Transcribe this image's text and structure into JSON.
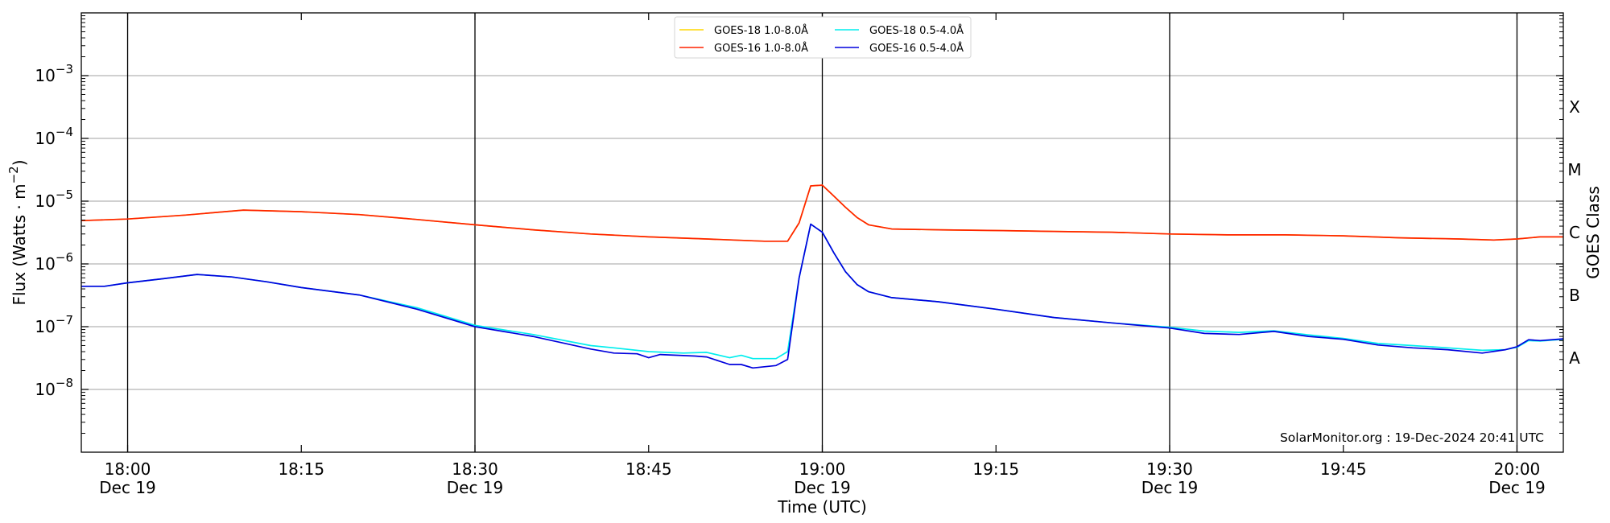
{
  "chart_data": {
    "type": "line",
    "xlabel": "Time (UTC)",
    "ylabel": "Flux (Watts · m⁻²)",
    "ylabel_right": "GOES Class",
    "x_unit": "UTC time (HH:MM), 19-Dec-2024",
    "xlim": [
      "17:56",
      "20:04"
    ],
    "ylim": [
      1e-09,
      0.01
    ],
    "y_scale": "log",
    "grid": "horizontal at each decade; vertical at 30-minute ticks",
    "legend_position": "top-center",
    "x_ticks": [
      {
        "x": "18:00",
        "time": "18:00",
        "date": "Dec 19"
      },
      {
        "x": "18:15",
        "time": "18:15",
        "date": ""
      },
      {
        "x": "18:30",
        "time": "18:30",
        "date": "Dec 19"
      },
      {
        "x": "18:45",
        "time": "18:45",
        "date": ""
      },
      {
        "x": "19:00",
        "time": "19:00",
        "date": "Dec 19"
      },
      {
        "x": "19:15",
        "time": "19:15",
        "date": ""
      },
      {
        "x": "19:30",
        "time": "19:30",
        "date": "Dec 19"
      },
      {
        "x": "19:45",
        "time": "19:45",
        "date": ""
      },
      {
        "x": "20:00",
        "time": "20:00",
        "date": "Dec 19"
      }
    ],
    "y_ticks": [
      {
        "value": 0.001,
        "base": "10",
        "exp": "−3"
      },
      {
        "value": 0.0001,
        "base": "10",
        "exp": "−4"
      },
      {
        "value": 1e-05,
        "base": "10",
        "exp": "−5"
      },
      {
        "value": 1e-06,
        "base": "10",
        "exp": "−6"
      },
      {
        "value": 1e-07,
        "base": "10",
        "exp": "−7"
      },
      {
        "value": 1e-08,
        "base": "10",
        "exp": "−8"
      }
    ],
    "class_labels": [
      {
        "label": "X",
        "value": 0.000316
      },
      {
        "label": "M",
        "value": 3.16e-05
      },
      {
        "label": "C",
        "value": 3.16e-06
      },
      {
        "label": "B",
        "value": 3.16e-07
      },
      {
        "label": "A",
        "value": 3.16e-08
      }
    ],
    "series": [
      {
        "name": "GOES-18 1.0-8.0Å",
        "color": "#ffd700",
        "points": [
          [
            "17:56",
            4.9e-06
          ],
          [
            "18:00",
            5.2e-06
          ],
          [
            "18:05",
            6e-06
          ],
          [
            "18:10",
            7.2e-06
          ],
          [
            "18:15",
            6.8e-06
          ],
          [
            "18:20",
            6.1e-06
          ],
          [
            "18:25",
            5.1e-06
          ],
          [
            "18:30",
            4.2e-06
          ],
          [
            "18:35",
            3.5e-06
          ],
          [
            "18:40",
            3e-06
          ],
          [
            "18:45",
            2.7e-06
          ],
          [
            "18:50",
            2.5e-06
          ],
          [
            "18:55",
            2.3e-06
          ],
          [
            "18:57",
            2.3e-06
          ],
          [
            "18:58",
            4.5e-06
          ],
          [
            "18:59",
            1.75e-05
          ],
          [
            "19:00",
            1.8e-05
          ],
          [
            "19:01",
            1.2e-05
          ],
          [
            "19:02",
            8e-06
          ],
          [
            "19:03",
            5.5e-06
          ],
          [
            "19:04",
            4.2e-06
          ],
          [
            "19:06",
            3.6e-06
          ],
          [
            "19:10",
            3.5e-06
          ],
          [
            "19:15",
            3.4e-06
          ],
          [
            "19:20",
            3.3e-06
          ],
          [
            "19:25",
            3.2e-06
          ],
          [
            "19:30",
            3e-06
          ],
          [
            "19:35",
            2.9e-06
          ],
          [
            "19:40",
            2.9e-06
          ],
          [
            "19:45",
            2.8e-06
          ],
          [
            "19:50",
            2.6e-06
          ],
          [
            "19:55",
            2.5e-06
          ],
          [
            "19:58",
            2.4e-06
          ],
          [
            "20:00",
            2.5e-06
          ],
          [
            "20:02",
            2.7e-06
          ],
          [
            "20:04",
            2.7e-06
          ]
        ]
      },
      {
        "name": "GOES-16 1.0-8.0Å",
        "color": "#ff2200",
        "points": [
          [
            "17:56",
            4.9e-06
          ],
          [
            "18:00",
            5.2e-06
          ],
          [
            "18:05",
            6e-06
          ],
          [
            "18:10",
            7.2e-06
          ],
          [
            "18:15",
            6.8e-06
          ],
          [
            "18:20",
            6.1e-06
          ],
          [
            "18:25",
            5.1e-06
          ],
          [
            "18:30",
            4.2e-06
          ],
          [
            "18:35",
            3.5e-06
          ],
          [
            "18:40",
            3e-06
          ],
          [
            "18:45",
            2.7e-06
          ],
          [
            "18:50",
            2.5e-06
          ],
          [
            "18:55",
            2.3e-06
          ],
          [
            "18:57",
            2.3e-06
          ],
          [
            "18:58",
            4.5e-06
          ],
          [
            "18:59",
            1.75e-05
          ],
          [
            "19:00",
            1.8e-05
          ],
          [
            "19:01",
            1.2e-05
          ],
          [
            "19:02",
            8e-06
          ],
          [
            "19:03",
            5.5e-06
          ],
          [
            "19:04",
            4.2e-06
          ],
          [
            "19:06",
            3.6e-06
          ],
          [
            "19:10",
            3.5e-06
          ],
          [
            "19:15",
            3.4e-06
          ],
          [
            "19:20",
            3.3e-06
          ],
          [
            "19:25",
            3.2e-06
          ],
          [
            "19:30",
            3e-06
          ],
          [
            "19:35",
            2.9e-06
          ],
          [
            "19:40",
            2.9e-06
          ],
          [
            "19:45",
            2.8e-06
          ],
          [
            "19:50",
            2.6e-06
          ],
          [
            "19:55",
            2.5e-06
          ],
          [
            "19:58",
            2.4e-06
          ],
          [
            "20:00",
            2.5e-06
          ],
          [
            "20:02",
            2.7e-06
          ],
          [
            "20:04",
            2.7e-06
          ]
        ]
      },
      {
        "name": "GOES-18 0.5-4.0Å",
        "color": "#00eeee",
        "points": [
          [
            "17:56",
            4.4e-07
          ],
          [
            "17:58",
            4.4e-07
          ],
          [
            "18:00",
            5e-07
          ],
          [
            "18:03",
            5.8e-07
          ],
          [
            "18:06",
            6.8e-07
          ],
          [
            "18:09",
            6.2e-07
          ],
          [
            "18:12",
            5.2e-07
          ],
          [
            "18:15",
            4.2e-07
          ],
          [
            "18:20",
            3.2e-07
          ],
          [
            "18:25",
            2e-07
          ],
          [
            "18:30",
            1.05e-07
          ],
          [
            "18:35",
            7.5e-08
          ],
          [
            "18:40",
            5e-08
          ],
          [
            "18:42",
            4.6e-08
          ],
          [
            "18:45",
            4e-08
          ],
          [
            "18:48",
            3.8e-08
          ],
          [
            "18:50",
            3.9e-08
          ],
          [
            "18:52",
            3.2e-08
          ],
          [
            "18:53",
            3.5e-08
          ],
          [
            "18:54",
            3.1e-08
          ],
          [
            "18:56",
            3.1e-08
          ],
          [
            "18:57",
            4e-08
          ],
          [
            "18:58",
            6e-07
          ],
          [
            "18:59",
            4.3e-06
          ],
          [
            "19:00",
            3.2e-06
          ],
          [
            "19:01",
            1.5e-06
          ],
          [
            "19:02",
            7.5e-07
          ],
          [
            "19:03",
            4.7e-07
          ],
          [
            "19:04",
            3.6e-07
          ],
          [
            "19:06",
            2.9e-07
          ],
          [
            "19:10",
            2.5e-07
          ],
          [
            "19:15",
            1.9e-07
          ],
          [
            "19:20",
            1.4e-07
          ],
          [
            "19:25",
            1.15e-07
          ],
          [
            "19:30",
            9.8e-08
          ],
          [
            "19:33",
            8.5e-08
          ],
          [
            "19:36",
            8.1e-08
          ],
          [
            "19:39",
            8.6e-08
          ],
          [
            "19:42",
            7.4e-08
          ],
          [
            "19:45",
            6.5e-08
          ],
          [
            "19:48",
            5.4e-08
          ],
          [
            "19:51",
            5e-08
          ],
          [
            "19:54",
            4.6e-08
          ],
          [
            "19:57",
            4.2e-08
          ],
          [
            "19:59",
            4.3e-08
          ],
          [
            "20:00",
            4.7e-08
          ],
          [
            "20:01",
            6e-08
          ],
          [
            "20:02",
            5.9e-08
          ],
          [
            "20:04",
            6.3e-08
          ]
        ]
      },
      {
        "name": "GOES-16 0.5-4.0Å",
        "color": "#0000dd",
        "points": [
          [
            "17:56",
            4.4e-07
          ],
          [
            "17:58",
            4.4e-07
          ],
          [
            "18:00",
            5e-07
          ],
          [
            "18:03",
            5.8e-07
          ],
          [
            "18:06",
            6.8e-07
          ],
          [
            "18:09",
            6.2e-07
          ],
          [
            "18:12",
            5.2e-07
          ],
          [
            "18:15",
            4.2e-07
          ],
          [
            "18:20",
            3.2e-07
          ],
          [
            "18:25",
            1.9e-07
          ],
          [
            "18:30",
            1e-07
          ],
          [
            "18:35",
            7e-08
          ],
          [
            "18:40",
            4.4e-08
          ],
          [
            "18:42",
            3.8e-08
          ],
          [
            "18:44",
            3.7e-08
          ],
          [
            "18:45",
            3.2e-08
          ],
          [
            "18:46",
            3.6e-08
          ],
          [
            "18:49",
            3.4e-08
          ],
          [
            "18:50",
            3.3e-08
          ],
          [
            "18:52",
            2.5e-08
          ],
          [
            "18:53",
            2.5e-08
          ],
          [
            "18:54",
            2.2e-08
          ],
          [
            "18:56",
            2.4e-08
          ],
          [
            "18:57",
            3e-08
          ],
          [
            "18:58",
            6e-07
          ],
          [
            "18:59",
            4.3e-06
          ],
          [
            "19:00",
            3.2e-06
          ],
          [
            "19:01",
            1.5e-06
          ],
          [
            "19:02",
            7.5e-07
          ],
          [
            "19:03",
            4.7e-07
          ],
          [
            "19:04",
            3.6e-07
          ],
          [
            "19:06",
            2.9e-07
          ],
          [
            "19:10",
            2.5e-07
          ],
          [
            "19:15",
            1.9e-07
          ],
          [
            "19:20",
            1.4e-07
          ],
          [
            "19:25",
            1.15e-07
          ],
          [
            "19:30",
            9.5e-08
          ],
          [
            "19:33",
            7.8e-08
          ],
          [
            "19:36",
            7.5e-08
          ],
          [
            "19:39",
            8.4e-08
          ],
          [
            "19:42",
            7e-08
          ],
          [
            "19:45",
            6.3e-08
          ],
          [
            "19:48",
            5.1e-08
          ],
          [
            "19:51",
            4.6e-08
          ],
          [
            "19:54",
            4.3e-08
          ],
          [
            "19:57",
            3.8e-08
          ],
          [
            "19:59",
            4.3e-08
          ],
          [
            "20:00",
            4.8e-08
          ],
          [
            "20:01",
            6.2e-08
          ],
          [
            "20:02",
            6e-08
          ],
          [
            "20:04",
            6.4e-08
          ]
        ]
      }
    ],
    "watermark": "SolarMonitor.org : 19-Dec-2024 20:41 UTC"
  }
}
